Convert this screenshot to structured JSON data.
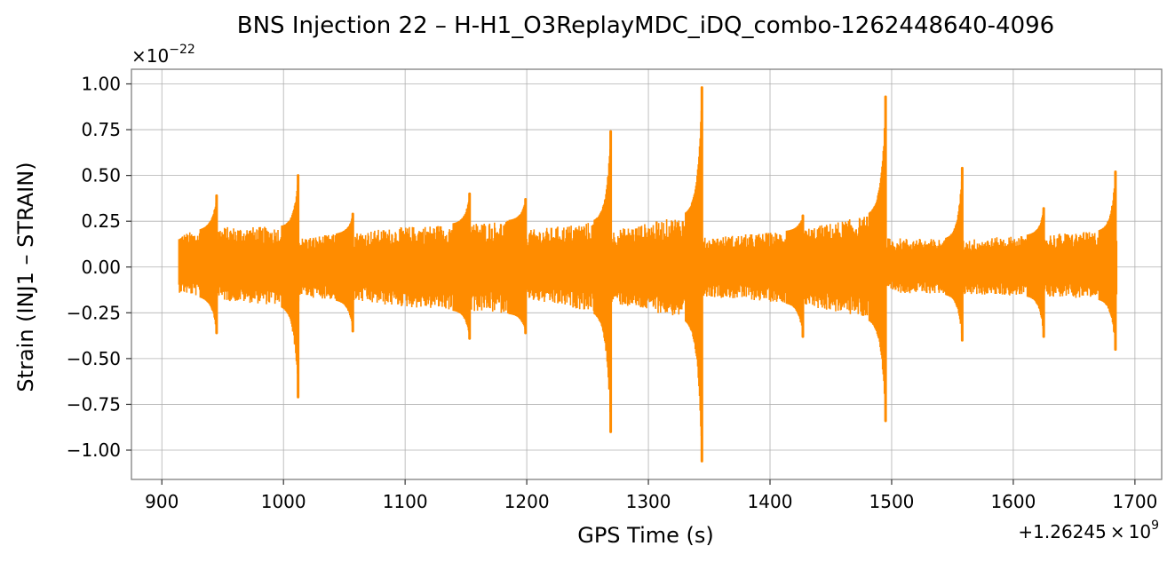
{
  "chart_data": {
    "type": "line",
    "title": "BNS Injection 22 – H-H1_O3ReplayMDC_iDQ_combo-1262448640-4096",
    "xlabel": "GPS Time (s)",
    "ylabel": "Strain (INJ1 – STRAIN)",
    "x_offset_text": {
      "base": "+1.26245",
      "mult": "×",
      "ten": "10",
      "exp": "9"
    },
    "y_offset_text": {
      "mult": "×10",
      "exp": "−22"
    },
    "xlim": [
      875,
      1722
    ],
    "ylim": [
      -1.16,
      1.08
    ],
    "x_ticks": [
      900,
      1000,
      1100,
      1200,
      1300,
      1400,
      1500,
      1600,
      1700
    ],
    "x_tick_labels": [
      "900",
      "1000",
      "1100",
      "1200",
      "1300",
      "1400",
      "1500",
      "1600",
      "1700"
    ],
    "y_ticks": [
      1.0,
      0.75,
      0.5,
      0.25,
      0.0,
      -0.25,
      -0.5,
      -0.75,
      -1.0
    ],
    "y_tick_labels": [
      "1.00",
      "0.75",
      "0.50",
      "0.25",
      "0.00",
      "−0.25",
      "−0.50",
      "−0.75",
      "−1.00"
    ],
    "grid": true,
    "color": "#ff8c00",
    "x_range": [
      914,
      1685
    ],
    "envelope": [
      {
        "x": 914,
        "upper": 0.18,
        "lower": -0.14
      },
      {
        "x": 945,
        "upper": 0.22,
        "lower": -0.18
      },
      {
        "x": 1012,
        "upper": 0.22,
        "lower": -0.22
      },
      {
        "x": 1013,
        "upper": 0.16,
        "lower": -0.16
      },
      {
        "x": 1100,
        "upper": 0.22,
        "lower": -0.22
      },
      {
        "x": 1198,
        "upper": 0.26,
        "lower": -0.26
      },
      {
        "x": 1199,
        "upper": 0.2,
        "lower": -0.18
      },
      {
        "x": 1269,
        "upper": 0.26,
        "lower": -0.26
      },
      {
        "x": 1270,
        "upper": 0.2,
        "lower": -0.2
      },
      {
        "x": 1343,
        "upper": 0.3,
        "lower": -0.3
      },
      {
        "x": 1344,
        "upper": 0.16,
        "lower": -0.16
      },
      {
        "x": 1420,
        "upper": 0.2,
        "lower": -0.2
      },
      {
        "x": 1494,
        "upper": 0.3,
        "lower": -0.3
      },
      {
        "x": 1495,
        "upper": 0.16,
        "lower": -0.14
      },
      {
        "x": 1558,
        "upper": 0.15,
        "lower": -0.15
      },
      {
        "x": 1625,
        "upper": 0.18,
        "lower": -0.16
      },
      {
        "x": 1685,
        "upper": 0.2,
        "lower": -0.18
      }
    ],
    "spikes": [
      {
        "x": 945,
        "max": 0.39,
        "min": -0.36
      },
      {
        "x": 1012,
        "max": 0.5,
        "min": -0.71
      },
      {
        "x": 1057,
        "max": 0.29,
        "min": -0.35
      },
      {
        "x": 1153,
        "max": 0.4,
        "min": -0.39
      },
      {
        "x": 1199,
        "max": 0.37,
        "min": -0.36
      },
      {
        "x": 1269,
        "max": 0.74,
        "min": -0.9
      },
      {
        "x": 1344,
        "max": 0.98,
        "min": -1.06
      },
      {
        "x": 1427,
        "max": 0.28,
        "min": -0.38
      },
      {
        "x": 1495,
        "max": 0.93,
        "min": -0.84
      },
      {
        "x": 1558,
        "max": 0.54,
        "min": -0.4
      },
      {
        "x": 1625,
        "max": 0.32,
        "min": -0.38
      },
      {
        "x": 1684,
        "max": 0.52,
        "min": -0.45
      }
    ]
  }
}
